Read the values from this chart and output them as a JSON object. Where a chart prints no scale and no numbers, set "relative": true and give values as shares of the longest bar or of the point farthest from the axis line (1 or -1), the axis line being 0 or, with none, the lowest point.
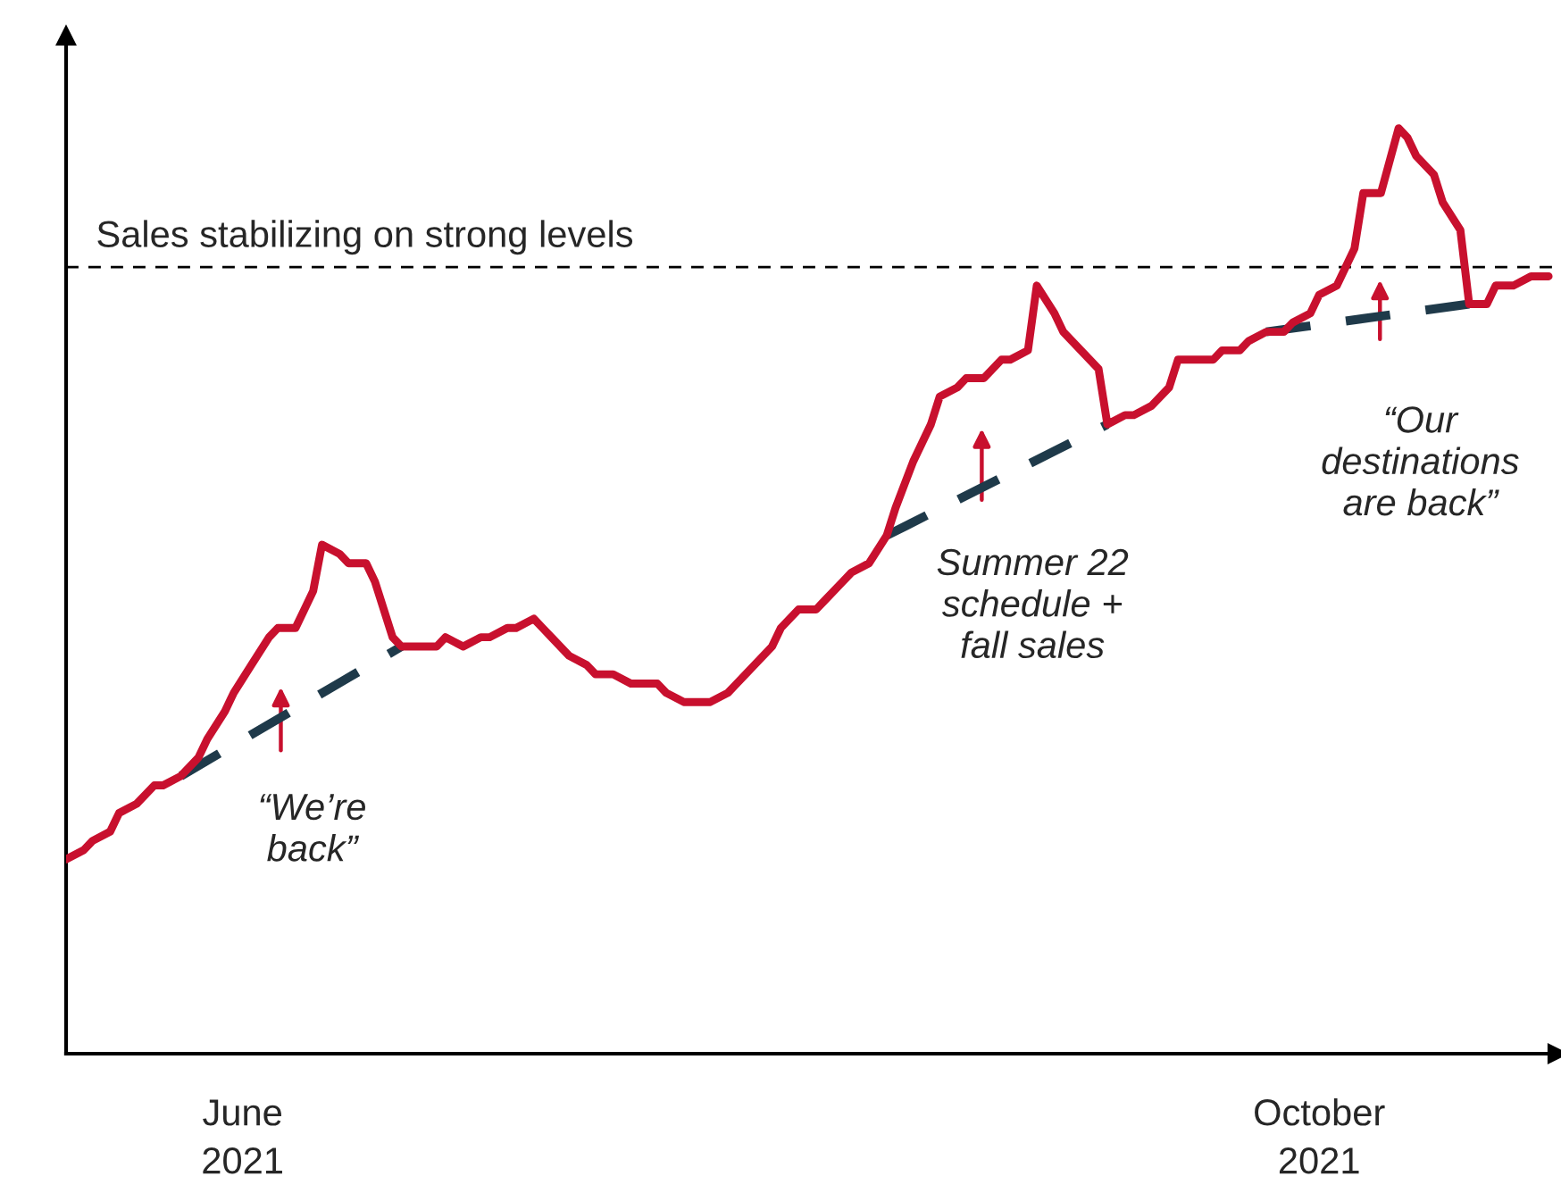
{
  "chart_data": {
    "type": "line",
    "relative": true,
    "legend": false,
    "grid": false,
    "marker": "none",
    "xlim": [
      "2021-05-12",
      "2021-10-28"
    ],
    "xticks": [
      {
        "value": "2021-06-01",
        "label": "June\n2021"
      },
      {
        "value": "2021-10-01",
        "label": "October\n2021"
      }
    ],
    "series": [
      {
        "color": "#c8102e",
        "line_style": "solid",
        "x": [
          "2021-05-12",
          "2021-05-14",
          "2021-05-15",
          "2021-05-17",
          "2021-05-18",
          "2021-05-20",
          "2021-05-22",
          "2021-05-23",
          "2021-05-25",
          "2021-05-27",
          "2021-05-28",
          "2021-05-30",
          "2021-05-31",
          "2021-06-02",
          "2021-06-04",
          "2021-06-05",
          "2021-06-07",
          "2021-06-08",
          "2021-06-09",
          "2021-06-10",
          "2021-06-12",
          "2021-06-13",
          "2021-06-15",
          "2021-06-16",
          "2021-06-18",
          "2021-06-19",
          "2021-06-21",
          "2021-06-23",
          "2021-06-24",
          "2021-06-26",
          "2021-06-28",
          "2021-06-29",
          "2021-07-01",
          "2021-07-02",
          "2021-07-04",
          "2021-07-05",
          "2021-07-06",
          "2021-07-08",
          "2021-07-10",
          "2021-07-11",
          "2021-07-13",
          "2021-07-15",
          "2021-07-16",
          "2021-07-18",
          "2021-07-19",
          "2021-07-21",
          "2021-07-23",
          "2021-07-24",
          "2021-07-26",
          "2021-07-27",
          "2021-07-29",
          "2021-07-31",
          "2021-08-01",
          "2021-08-03",
          "2021-08-05",
          "2021-08-06",
          "2021-08-08",
          "2021-08-09",
          "2021-08-11",
          "2021-08-13",
          "2021-08-14",
          "2021-08-16",
          "2021-08-18",
          "2021-08-19",
          "2021-08-21",
          "2021-08-22",
          "2021-08-24",
          "2021-08-26",
          "2021-08-27",
          "2021-08-29",
          "2021-08-30",
          "2021-09-01",
          "2021-09-02",
          "2021-09-04",
          "2021-09-06",
          "2021-09-07",
          "2021-09-09",
          "2021-09-10",
          "2021-09-12",
          "2021-09-14",
          "2021-09-15",
          "2021-09-17",
          "2021-09-19",
          "2021-09-20",
          "2021-09-22",
          "2021-09-23",
          "2021-09-25",
          "2021-09-27",
          "2021-09-28",
          "2021-09-30",
          "2021-10-01",
          "2021-10-03",
          "2021-10-05",
          "2021-10-06",
          "2021-10-08",
          "2021-10-10",
          "2021-10-11",
          "2021-10-12",
          "2021-10-14",
          "2021-10-15",
          "2021-10-17",
          "2021-10-18",
          "2021-10-20",
          "2021-10-21",
          "2021-10-23",
          "2021-10-25",
          "2021-10-26",
          "2021-10-27"
        ],
        "values": [
          0.21,
          0.22,
          0.23,
          0.24,
          0.26,
          0.27,
          0.29,
          0.29,
          0.3,
          0.32,
          0.34,
          0.37,
          0.39,
          0.42,
          0.45,
          0.46,
          0.46,
          0.48,
          0.5,
          0.55,
          0.54,
          0.53,
          0.53,
          0.51,
          0.45,
          0.44,
          0.44,
          0.44,
          0.45,
          0.44,
          0.45,
          0.45,
          0.46,
          0.46,
          0.47,
          0.46,
          0.45,
          0.43,
          0.42,
          0.41,
          0.41,
          0.4,
          0.4,
          0.4,
          0.39,
          0.38,
          0.38,
          0.38,
          0.39,
          0.4,
          0.42,
          0.44,
          0.46,
          0.48,
          0.48,
          0.49,
          0.51,
          0.52,
          0.53,
          0.56,
          0.59,
          0.64,
          0.68,
          0.71,
          0.72,
          0.73,
          0.73,
          0.75,
          0.75,
          0.76,
          0.83,
          0.8,
          0.78,
          0.76,
          0.74,
          0.68,
          0.69,
          0.69,
          0.7,
          0.72,
          0.75,
          0.75,
          0.75,
          0.76,
          0.76,
          0.77,
          0.78,
          0.78,
          0.79,
          0.8,
          0.82,
          0.83,
          0.87,
          0.93,
          0.93,
          1.0,
          0.99,
          0.97,
          0.95,
          0.92,
          0.89,
          0.81,
          0.81,
          0.83,
          0.83,
          0.84,
          0.84,
          0.84
        ]
      },
      {
        "color": "#1f3a4a",
        "line_style": "dashed",
        "x": [
          "2021-05-25",
          "2021-06-19"
        ],
        "values": [
          0.3,
          0.44
        ]
      },
      {
        "color": "#1f3a4a",
        "line_style": "dashed",
        "x": [
          "2021-08-13",
          "2021-09-07"
        ],
        "values": [
          0.56,
          0.68
        ]
      },
      {
        "color": "#1f3a4a",
        "line_style": "dashed",
        "x": [
          "2021-09-25",
          "2021-10-18"
        ],
        "values": [
          0.78,
          0.81
        ]
      }
    ],
    "ref_lines": [
      {
        "axis": "y",
        "value": 0.85,
        "label": "Sales stabilizing on strong levels",
        "color": "#000000",
        "line_style": "dashed"
      }
    ],
    "annotations": [
      "“We’re\nback”",
      "Summer 22\nschedule +\nfall sales",
      "“Our\ndestinations\nare back”"
    ]
  }
}
